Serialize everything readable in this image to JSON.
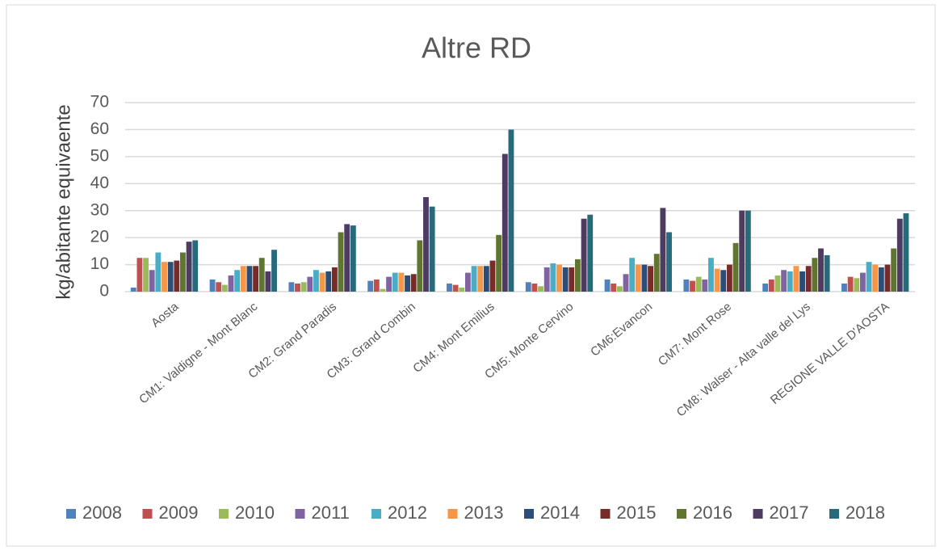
{
  "chart_data": {
    "type": "bar",
    "title": "Altre RD",
    "y_label": "kg/abitante equivaente",
    "categories": [
      "Aosta",
      "CM1: Valdigne - Mont Blanc",
      "CM2: Grand Paradis",
      "CM3: Grand Combin",
      "CM4: Mont Emilius",
      "CM5: Monte Cervino",
      "CM6:Evancon",
      "CM7: Mont Rose",
      "CM8: Walser - Alta valle del Lys",
      "REGIONE VALLE D'AOSTA"
    ],
    "series": [
      {
        "name": "2008",
        "color": "#4f81bd",
        "values": [
          1.5,
          4.5,
          3.5,
          4,
          3,
          3.5,
          4.5,
          4.5,
          3,
          3
        ]
      },
      {
        "name": "2009",
        "color": "#c0504d",
        "values": [
          12.5,
          3.5,
          3,
          4.5,
          2.5,
          3,
          3,
          4,
          4.5,
          5.5
        ]
      },
      {
        "name": "2010",
        "color": "#9bbb59",
        "values": [
          12.5,
          2.5,
          3.5,
          1,
          1.5,
          2,
          2,
          5.5,
          6,
          5
        ]
      },
      {
        "name": "2011",
        "color": "#8064a2",
        "values": [
          8,
          6,
          5.5,
          5.5,
          7,
          9,
          6.5,
          4.5,
          8,
          7
        ]
      },
      {
        "name": "2012",
        "color": "#4bacc6",
        "values": [
          14.5,
          8,
          8,
          7,
          9.5,
          10.5,
          12.5,
          12.5,
          7.5,
          11
        ]
      },
      {
        "name": "2013",
        "color": "#f79646",
        "values": [
          11,
          9.5,
          7,
          7,
          9.5,
          10,
          10,
          8.5,
          9.5,
          10
        ]
      },
      {
        "name": "2014",
        "color": "#2c4d75",
        "values": [
          11,
          9.5,
          7.5,
          6,
          9.5,
          9,
          10,
          8,
          7.5,
          9
        ]
      },
      {
        "name": "2015",
        "color": "#772c2a",
        "values": [
          11.5,
          9.5,
          9,
          6.5,
          11.5,
          9,
          9.5,
          10,
          9.5,
          10
        ]
      },
      {
        "name": "2016",
        "color": "#5f7530",
        "values": [
          14.5,
          12.5,
          22,
          19,
          21,
          12,
          14,
          18,
          12.5,
          16
        ]
      },
      {
        "name": "2017",
        "color": "#4d3b62",
        "values": [
          18.5,
          7.5,
          25,
          35,
          51,
          27,
          31,
          30,
          16,
          27
        ]
      },
      {
        "name": "2018",
        "color": "#276a7c",
        "values": [
          19,
          15.5,
          24.5,
          31.5,
          60,
          28.5,
          22,
          30,
          13.5,
          29
        ]
      }
    ],
    "ylim": [
      0,
      70
    ],
    "yticks": [
      0,
      10,
      20,
      30,
      40,
      50,
      60,
      70
    ],
    "grid": true,
    "legend": "bottom"
  }
}
